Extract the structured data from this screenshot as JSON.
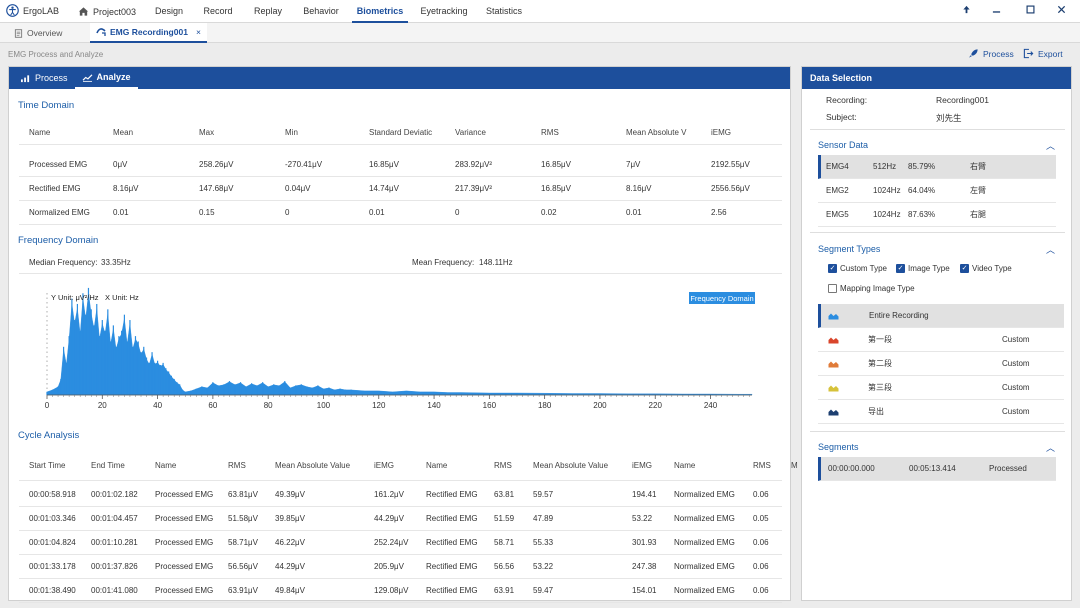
{
  "app": {
    "name": "ErgoLAB",
    "project": "Project003"
  },
  "nav": {
    "tabs": [
      "Design",
      "Record",
      "Replay",
      "Behavior",
      "Biometrics",
      "Eyetracking",
      "Statistics"
    ],
    "active": "Biometrics"
  },
  "doc_tabs": {
    "overview": "Overview",
    "active": "EMG Recording001",
    "close": "×"
  },
  "breadcrumb": "EMG Process and Analyze",
  "actions": {
    "process": "Process",
    "export": "Export"
  },
  "panel_tabs": {
    "process": "Process",
    "analyze": "Analyze"
  },
  "time_domain": {
    "title": "Time Domain",
    "headers": [
      "Name",
      "Mean",
      "Max",
      "Min",
      "Standard Deviatic",
      "Variance",
      "RMS",
      "Mean Absolute V",
      "iEMG"
    ],
    "rows": [
      [
        "Processed EMG",
        "0μV",
        "258.26μV",
        "-270.41μV",
        "16.85μV",
        "283.92μV²",
        "16.85μV",
        "7μV",
        "2192.55μV"
      ],
      [
        "Rectified EMG",
        "8.16μV",
        "147.68μV",
        "0.04μV",
        "14.74μV",
        "217.39μV²",
        "16.85μV",
        "8.16μV",
        "2556.56μV"
      ],
      [
        "Normalized EMG",
        "0.01",
        "0.15",
        "0",
        "0.01",
        "0",
        "0.02",
        "0.01",
        "2.56"
      ]
    ]
  },
  "frequency_domain": {
    "title": "Frequency Domain",
    "median_label": "Median Frequency:",
    "median_value": "33.35Hz",
    "mean_label": "Mean Frequency:",
    "mean_value": "148.11Hz"
  },
  "chart_data": {
    "type": "area",
    "y_unit_label": "Y Unit: μV²/Hz",
    "x_unit_label": "X Unit: Hz",
    "legend": "Frequency Domain",
    "x_ticks": [
      "0",
      "20",
      "40",
      "60",
      "80",
      "100",
      "120",
      "140",
      "160",
      "180",
      "200",
      "220",
      "240"
    ],
    "xlim": [
      0,
      255
    ],
    "ylim": [
      0,
      1
    ],
    "color": "#2b8de0",
    "x": [
      0,
      2,
      4,
      5,
      6,
      7,
      8,
      9,
      10,
      11,
      12,
      13,
      14,
      15,
      16,
      17,
      18,
      19,
      20,
      21,
      22,
      23,
      24,
      25,
      26,
      27,
      28,
      29,
      30,
      31,
      32,
      33,
      34,
      35,
      36,
      37,
      38,
      39,
      40,
      41,
      42,
      43,
      44,
      45,
      46,
      47,
      48,
      49,
      50,
      52,
      54,
      56,
      58,
      60,
      62,
      64,
      66,
      68,
      70,
      72,
      74,
      76,
      78,
      80,
      82,
      84,
      86,
      88,
      90,
      92,
      94,
      96,
      98,
      100,
      102,
      104,
      106,
      108,
      110,
      115,
      120,
      125,
      130,
      135,
      140,
      145,
      150,
      160,
      170,
      180,
      190,
      200,
      210,
      220,
      230,
      240,
      250,
      255
    ],
    "y": [
      0.03,
      0.05,
      0.08,
      0.15,
      0.45,
      0.3,
      0.55,
      0.9,
      0.7,
      0.85,
      0.6,
      0.95,
      0.75,
      1.0,
      0.8,
      0.65,
      0.85,
      0.55,
      0.7,
      0.6,
      0.8,
      0.5,
      0.65,
      0.45,
      0.55,
      0.6,
      0.75,
      0.5,
      0.7,
      0.45,
      0.55,
      0.5,
      0.4,
      0.45,
      0.35,
      0.3,
      0.4,
      0.3,
      0.32,
      0.28,
      0.3,
      0.25,
      0.22,
      0.18,
      0.15,
      0.12,
      0.1,
      0.05,
      0.03,
      0.04,
      0.06,
      0.08,
      0.07,
      0.12,
      0.09,
      0.1,
      0.13,
      0.1,
      0.12,
      0.08,
      0.11,
      0.09,
      0.12,
      0.08,
      0.1,
      0.09,
      0.13,
      0.07,
      0.09,
      0.1,
      0.08,
      0.07,
      0.09,
      0.06,
      0.07,
      0.05,
      0.06,
      0.05,
      0.05,
      0.04,
      0.04,
      0.03,
      0.04,
      0.03,
      0.03,
      0.025,
      0.025,
      0.02,
      0.02,
      0.018,
      0.015,
      0.015,
      0.012,
      0.012,
      0.01,
      0.01,
      0.008,
      0.008
    ]
  },
  "cycle_analysis": {
    "title": "Cycle Analysis",
    "headers": [
      "Start Time",
      "End Time",
      "Name",
      "RMS",
      "Mean Absolute Value",
      "iEMG",
      "Name",
      "RMS",
      "Mean Absolute Value",
      "iEMG",
      "Name",
      "RMS",
      "M"
    ],
    "rows": [
      [
        "00:00:58.918",
        "00:01:02.182",
        "Processed EMG",
        "63.81μV",
        "49.39μV",
        "161.2μV",
        "Rectified EMG",
        "63.81",
        "59.57",
        "194.41",
        "Normalized EMG",
        "0.06"
      ],
      [
        "00:01:03.346",
        "00:01:04.457",
        "Processed EMG",
        "51.58μV",
        "39.85μV",
        "44.29μV",
        "Rectified EMG",
        "51.59",
        "47.89",
        "53.22",
        "Normalized EMG",
        "0.05"
      ],
      [
        "00:01:04.824",
        "00:01:10.281",
        "Processed EMG",
        "58.71μV",
        "46.22μV",
        "252.24μV",
        "Rectified EMG",
        "58.71",
        "55.33",
        "301.93",
        "Normalized EMG",
        "0.06"
      ],
      [
        "00:01:33.178",
        "00:01:37.826",
        "Processed EMG",
        "56.56μV",
        "44.29μV",
        "205.9μV",
        "Rectified EMG",
        "56.56",
        "53.22",
        "247.38",
        "Normalized EMG",
        "0.06"
      ],
      [
        "00:01:38.490",
        "00:01:41.080",
        "Processed EMG",
        "63.91μV",
        "49.84μV",
        "129.08μV",
        "Rectified EMG",
        "63.91",
        "59.47",
        "154.01",
        "Normalized EMG",
        "0.06"
      ]
    ]
  },
  "data_selection": {
    "title": "Data Selection",
    "recording_label": "Recording:",
    "recording_value": "Recording001",
    "subject_label": "Subject:",
    "subject_value": "刘先生",
    "sensor_title": "Sensor Data",
    "sensors": [
      [
        "EMG4",
        "512Hz",
        "85.79%",
        "右臂"
      ],
      [
        "EMG2",
        "1024Hz",
        "64.04%",
        "左臂"
      ],
      [
        "EMG5",
        "1024Hz",
        "87.63%",
        "右腿"
      ]
    ],
    "segment_types_title": "Segment Types",
    "segment_types": [
      {
        "label": "Custom Type",
        "checked": true
      },
      {
        "label": "Image Type",
        "checked": true
      },
      {
        "label": "Video Type",
        "checked": true
      },
      {
        "label": "Mapping Image Type",
        "checked": false
      }
    ],
    "segment_list": [
      {
        "name": "Entire Recording",
        "type": "",
        "color": "#2b8de0"
      },
      {
        "name": "第一段",
        "type": "Custom",
        "color": "#d9452b"
      },
      {
        "name": "第二段",
        "type": "Custom",
        "color": "#e07b39"
      },
      {
        "name": "第三段",
        "type": "Custom",
        "color": "#d6c23a"
      },
      {
        "name": "导出",
        "type": "Custom",
        "color": "#1d3f70"
      }
    ],
    "segments_title": "Segments",
    "segments": [
      [
        "00:00:00.000",
        "00:05:13.414",
        "Processed"
      ]
    ]
  },
  "colors": {
    "primary": "#1d4f9c",
    "accent": "#2b8de0",
    "section": "#1d5ea8"
  }
}
